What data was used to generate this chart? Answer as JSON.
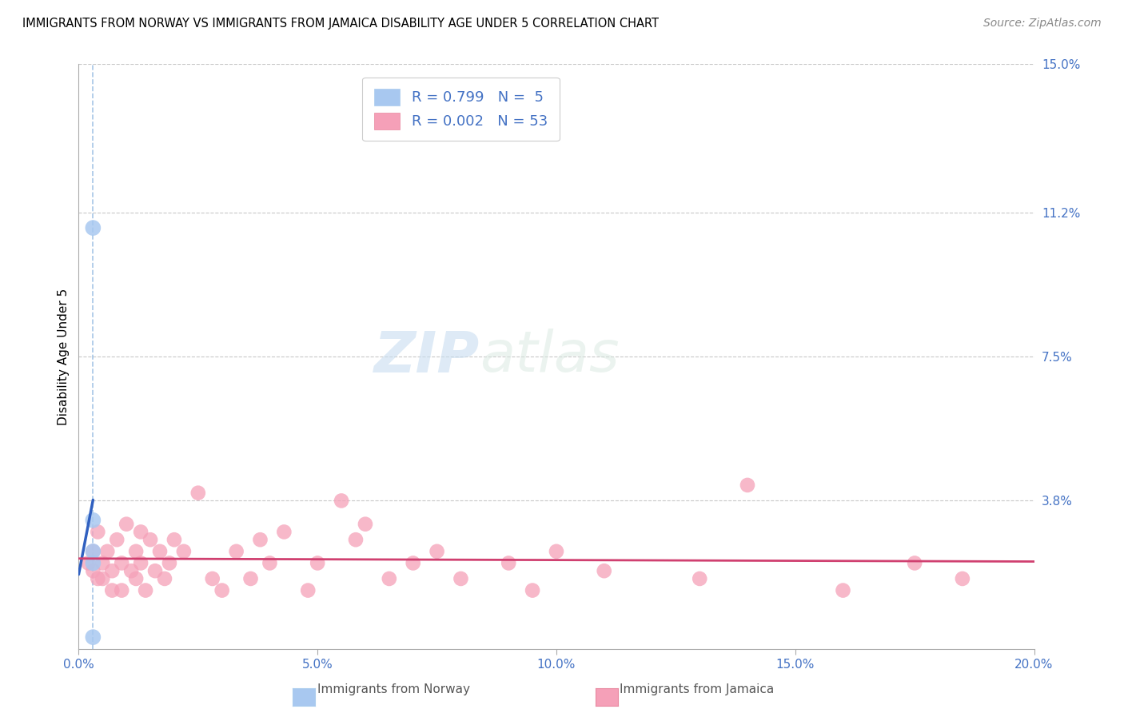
{
  "title": "IMMIGRANTS FROM NORWAY VS IMMIGRANTS FROM JAMAICA DISABILITY AGE UNDER 5 CORRELATION CHART",
  "source": "Source: ZipAtlas.com",
  "ylabel": "Disability Age Under 5",
  "xlim": [
    0.0,
    0.2
  ],
  "ylim": [
    0.0,
    0.15
  ],
  "xticks": [
    0.0,
    0.05,
    0.1,
    0.15,
    0.2
  ],
  "xticklabels": [
    "0.0%",
    "5.0%",
    "10.0%",
    "15.0%",
    "20.0%"
  ],
  "yticks": [
    0.0,
    0.038,
    0.075,
    0.112,
    0.15
  ],
  "yticklabels": [
    "",
    "3.8%",
    "7.5%",
    "11.2%",
    "15.0%"
  ],
  "norway_r": 0.799,
  "norway_n": 5,
  "jamaica_r": 0.002,
  "jamaica_n": 53,
  "norway_color": "#a8c8f0",
  "jamaica_color": "#f5a0b8",
  "norway_line_color": "#3060c0",
  "jamaica_line_color": "#d04070",
  "norway_dashed_color": "#90b8e0",
  "legend_label_norway": "Immigrants from Norway",
  "legend_label_jamaica": "Immigrants from Jamaica",
  "norway_points_x": [
    0.003,
    0.003,
    0.003,
    0.003,
    0.003
  ],
  "norway_points_y": [
    0.108,
    0.033,
    0.025,
    0.022,
    0.003
  ],
  "jamaica_points_x": [
    0.002,
    0.003,
    0.003,
    0.004,
    0.004,
    0.005,
    0.005,
    0.006,
    0.007,
    0.007,
    0.008,
    0.009,
    0.009,
    0.01,
    0.011,
    0.012,
    0.012,
    0.013,
    0.013,
    0.014,
    0.015,
    0.016,
    0.017,
    0.018,
    0.019,
    0.02,
    0.022,
    0.025,
    0.028,
    0.03,
    0.033,
    0.036,
    0.038,
    0.04,
    0.043,
    0.048,
    0.05,
    0.055,
    0.058,
    0.06,
    0.065,
    0.07,
    0.075,
    0.08,
    0.09,
    0.095,
    0.1,
    0.11,
    0.13,
    0.14,
    0.16,
    0.175,
    0.185
  ],
  "jamaica_points_y": [
    0.022,
    0.02,
    0.025,
    0.018,
    0.03,
    0.022,
    0.018,
    0.025,
    0.02,
    0.015,
    0.028,
    0.015,
    0.022,
    0.032,
    0.02,
    0.025,
    0.018,
    0.03,
    0.022,
    0.015,
    0.028,
    0.02,
    0.025,
    0.018,
    0.022,
    0.028,
    0.025,
    0.04,
    0.018,
    0.015,
    0.025,
    0.018,
    0.028,
    0.022,
    0.03,
    0.015,
    0.022,
    0.038,
    0.028,
    0.032,
    0.018,
    0.022,
    0.025,
    0.018,
    0.022,
    0.015,
    0.025,
    0.02,
    0.018,
    0.042,
    0.015,
    0.022,
    0.018
  ],
  "background_color": "#ffffff",
  "grid_color": "#c8c8c8"
}
